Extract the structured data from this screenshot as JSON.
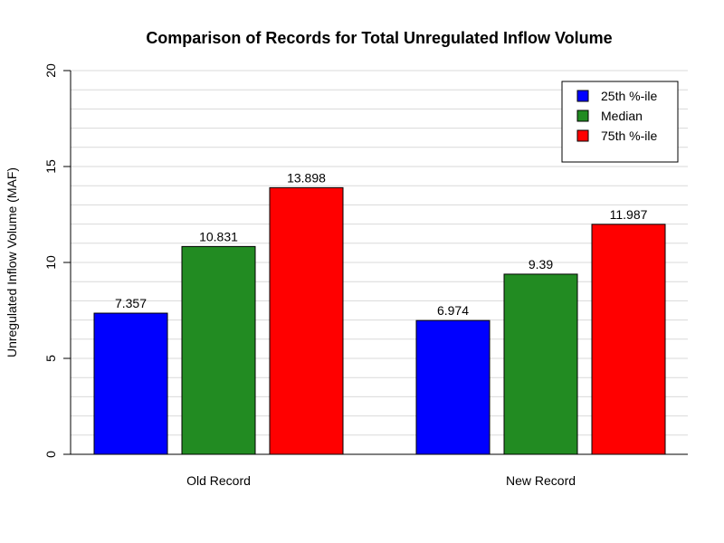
{
  "chart_data": {
    "type": "bar",
    "title": "Comparison of Records for Total Unregulated Inflow Volume",
    "xlabel": "",
    "ylabel": "Unregulated Inflow Volume (MAF)",
    "ylim": [
      0,
      20
    ],
    "yticks": [
      "0",
      "5",
      "10",
      "15",
      "20"
    ],
    "grid": true,
    "legend_position": "top-right",
    "categories": [
      "Old Record",
      "New Record"
    ],
    "series": [
      {
        "name": "25th %-ile",
        "color": "#0000ff",
        "values": [
          7.357,
          6.974
        ],
        "labels": [
          "7.357",
          "6.974"
        ]
      },
      {
        "name": "Median",
        "color": "#228b22",
        "values": [
          10.831,
          9.39
        ],
        "labels": [
          "10.831",
          "9.39"
        ]
      },
      {
        "name": "75th %-ile",
        "color": "#ff0000",
        "values": [
          13.898,
          11.987
        ],
        "labels": [
          "13.898",
          "11.987"
        ]
      }
    ]
  }
}
